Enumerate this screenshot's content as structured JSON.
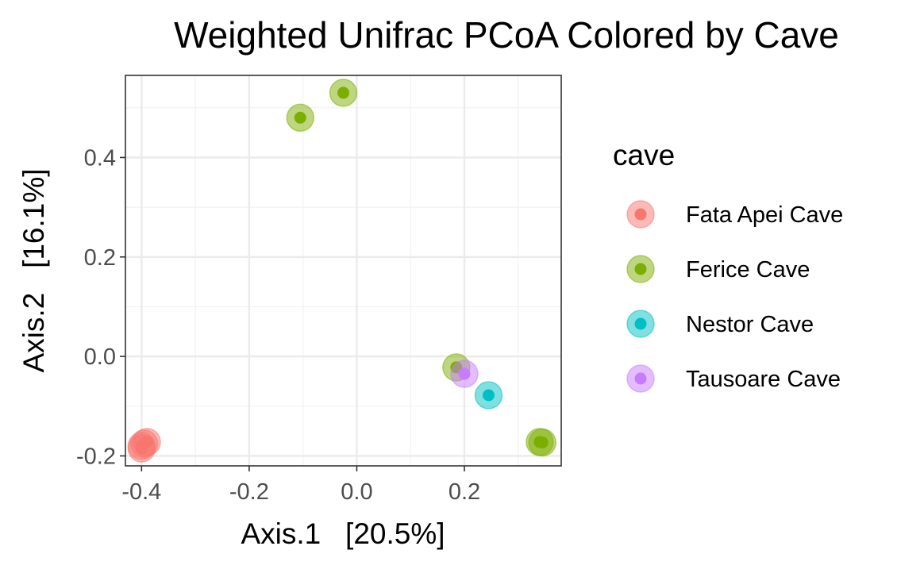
{
  "chart_data": {
    "type": "scatter",
    "title": "Weighted Unifrac PCoA Colored by Cave",
    "xlabel": "Axis.1   [20.5%]",
    "ylabel": "Axis.2   [16.1%]",
    "xlim": [
      -0.43,
      0.38
    ],
    "ylim": [
      -0.22,
      0.565
    ],
    "xticks": [
      -0.4,
      -0.2,
      0.0,
      0.2
    ],
    "xtick_labels": [
      "-0.4",
      "-0.2",
      "0.0",
      "0.2"
    ],
    "yticks": [
      -0.2,
      0.0,
      0.2,
      0.4
    ],
    "ytick_labels": [
      "-0.2",
      "0.0",
      "0.2",
      "0.4"
    ],
    "grid": true,
    "legend": {
      "title": "cave",
      "placement": "right"
    },
    "series": [
      {
        "name": "Fata Apei Cave",
        "color": "#F8766D",
        "points": [
          {
            "x": -0.4,
            "y": -0.18
          },
          {
            "x": -0.395,
            "y": -0.175
          },
          {
            "x": -0.39,
            "y": -0.172
          },
          {
            "x": -0.4,
            "y": -0.185
          }
        ]
      },
      {
        "name": "Ferice Cave",
        "color": "#7CAE00",
        "points": [
          {
            "x": -0.105,
            "y": 0.48
          },
          {
            "x": -0.025,
            "y": 0.53
          },
          {
            "x": 0.185,
            "y": -0.022
          },
          {
            "x": 0.34,
            "y": -0.172
          },
          {
            "x": 0.345,
            "y": -0.173
          }
        ]
      },
      {
        "name": "Nestor Cave",
        "color": "#00BFC4",
        "points": [
          {
            "x": 0.245,
            "y": -0.078
          }
        ]
      },
      {
        "name": "Tausoare Cave",
        "color": "#C77CFF",
        "points": [
          {
            "x": 0.2,
            "y": -0.035
          }
        ]
      }
    ]
  }
}
